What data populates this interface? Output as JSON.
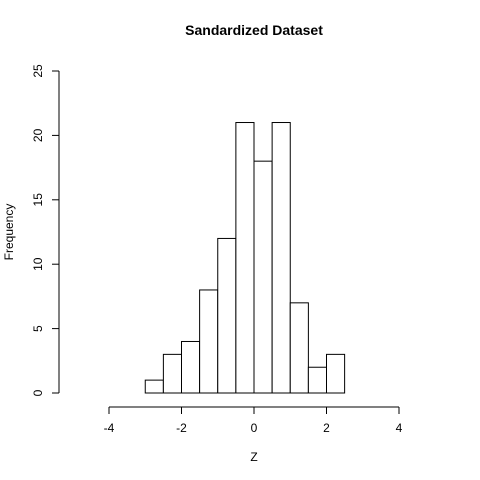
{
  "chart_data": {
    "type": "bar",
    "title": "Sandardized Dataset",
    "xlabel": "Z",
    "ylabel": "Frequency",
    "bins": [
      {
        "x0": -3.0,
        "x1": -2.5,
        "count": 1
      },
      {
        "x0": -2.5,
        "x1": -2.0,
        "count": 3
      },
      {
        "x0": -2.0,
        "x1": -1.5,
        "count": 4
      },
      {
        "x0": -1.5,
        "x1": -1.0,
        "count": 8
      },
      {
        "x0": -1.0,
        "x1": -0.5,
        "count": 12
      },
      {
        "x0": -0.5,
        "x1": 0.0,
        "count": 21
      },
      {
        "x0": 0.0,
        "x1": 0.5,
        "count": 18
      },
      {
        "x0": 0.5,
        "x1": 1.0,
        "count": 21
      },
      {
        "x0": 1.0,
        "x1": 1.5,
        "count": 7
      },
      {
        "x0": 1.5,
        "x1": 2.0,
        "count": 2
      },
      {
        "x0": 2.0,
        "x1": 2.5,
        "count": 3
      }
    ],
    "xlim": [
      -4,
      4
    ],
    "ylim": [
      0,
      25
    ],
    "xticks": [
      "-4",
      "-2",
      "0",
      "2",
      "4"
    ],
    "yticks": [
      "0",
      "5",
      "10",
      "15",
      "20",
      "25"
    ],
    "grid": false
  }
}
